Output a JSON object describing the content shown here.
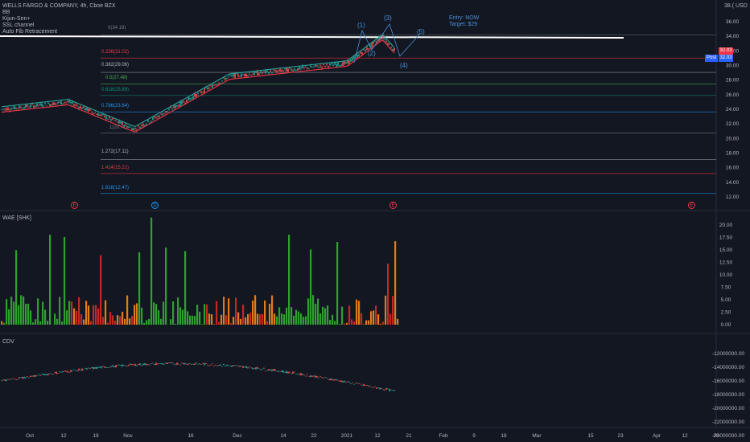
{
  "symbol_title": "WELLS FARGO & COMPANY, 4h, Cboe BZX",
  "indicators": [
    "BB",
    "Kijun-Sen+",
    "SSL channel",
    "Auto Fib Retracement"
  ],
  "unit_label": "38.( USD",
  "annotation": {
    "entry": "Entry: NOW",
    "target": "Target: $29"
  },
  "waves": [
    "(1)",
    "(2)",
    "(3)",
    "(4)",
    "(5)"
  ],
  "fib_levels": [
    {
      "label": "0(34.19)",
      "price": 34.19,
      "color": "#787b86"
    },
    {
      "label": "0.236(31.02)",
      "price": 31.02,
      "color": "#f23645"
    },
    {
      "label": "0.382(29.06)",
      "price": 29.06,
      "color": "#b2b5be"
    },
    {
      "label": "0.5(27.48)",
      "price": 27.48,
      "color": "#4caf50"
    },
    {
      "label": "0.618(25.89)",
      "price": 25.89,
      "color": "#089981"
    },
    {
      "label": "0.786(23.64)",
      "price": 23.64,
      "color": "#2196f3"
    },
    {
      "label": "1(20.77)",
      "price": 20.77,
      "color": "#787b86"
    },
    {
      "label": "1.272(17.11)",
      "price": 17.11,
      "color": "#b2b5be"
    },
    {
      "label": "1.414(15.21)",
      "price": 15.21,
      "color": "#f23645"
    },
    {
      "label": "1.618(12.47)",
      "price": 12.47,
      "color": "#2196f3"
    }
  ],
  "price_axis_labels": [
    "36.00",
    "34.00",
    "32.00",
    "30.00",
    "28.00",
    "26.00",
    "24.00",
    "22.00",
    "20.00",
    "18.00",
    "16.00",
    "14.00",
    "12.00"
  ],
  "price_badges": {
    "last": "32.03",
    "post_label": "Post",
    "post": "32.03"
  },
  "events": [
    {
      "letter": "E",
      "color": "#f23645"
    },
    {
      "letter": "D",
      "color": "#2196f3"
    },
    {
      "letter": "E",
      "color": "#f23645"
    },
    {
      "letter": "E",
      "color": "#f23645"
    }
  ],
  "wae_pane": {
    "title": "WAE [SHK]",
    "axis_labels": [
      "20.00",
      "17.50",
      "15.00",
      "12.50",
      "10.00",
      "7.50",
      "5.00",
      "2.50",
      "0.00"
    ]
  },
  "cdv_pane": {
    "title": "CDV",
    "axis_labels": [
      "-12000000.00",
      "-14000000.00",
      "-16000000.00",
      "-18000000.00",
      "-20000000.00",
      "-22000000.00",
      "-24000000.00"
    ]
  },
  "time_axis_labels": [
    "Oct",
    "12",
    "19",
    "Nov",
    "16",
    "Dec",
    "14",
    "22",
    "2021",
    "12",
    "21",
    "Feb",
    "9",
    "18",
    "Mar",
    "15",
    "23",
    "Apr",
    "12",
    "20"
  ],
  "colors": {
    "background": "#131722",
    "up": "#26a69a",
    "down": "#ef5350",
    "wae_up": "#2ea02e",
    "wae_down": "#c62828",
    "accent": "#2962ff"
  }
}
